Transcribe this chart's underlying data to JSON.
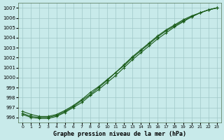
{
  "title": "Graphe pression niveau de la mer (hPa)",
  "background_color": "#c8eaea",
  "grid_color": "#a0c8c8",
  "line_color": "#1a5c1a",
  "x_ticks": [
    0,
    1,
    2,
    3,
    4,
    5,
    6,
    7,
    8,
    9,
    10,
    11,
    12,
    13,
    14,
    15,
    16,
    17,
    18,
    19,
    20,
    21,
    22,
    23
  ],
  "y_ticks": [
    996,
    997,
    998,
    999,
    1000,
    1001,
    1002,
    1003,
    1004,
    1005,
    1006,
    1007
  ],
  "ylim": [
    995.5,
    1007.5
  ],
  "xlim": [
    -0.5,
    23.5
  ],
  "series": [
    [
      996.3,
      996.0,
      995.9,
      995.9,
      996.1,
      996.5,
      997.0,
      997.5,
      998.2,
      998.8,
      999.5,
      1000.2,
      1001.0,
      1001.8,
      1002.5,
      1003.2,
      1003.9,
      1004.5,
      1005.1,
      1005.6,
      1006.1,
      1006.5,
      1006.8,
      1007.0
    ],
    [
      996.4,
      996.1,
      996.0,
      996.0,
      996.2,
      996.6,
      997.1,
      997.7,
      998.3,
      999.0,
      999.7,
      1000.5,
      1001.2,
      1002.0,
      1002.7,
      1003.4,
      1004.1,
      1004.7,
      1005.2,
      1005.7,
      1006.1,
      1006.5,
      1006.8,
      1007.0
    ],
    [
      996.6,
      996.3,
      996.1,
      996.1,
      996.3,
      996.7,
      997.2,
      997.8,
      998.5,
      999.1,
      999.8,
      1000.5,
      1001.3,
      1002.1,
      1002.8,
      1003.5,
      1004.2,
      1004.8,
      1005.3,
      1005.8,
      1006.2,
      1006.5,
      1006.8,
      1007.0
    ]
  ]
}
